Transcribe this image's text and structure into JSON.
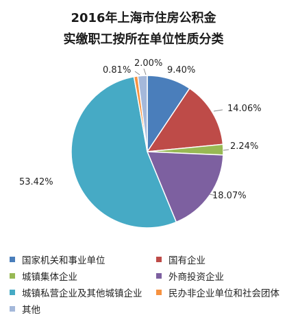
{
  "chart_data": {
    "type": "pie",
    "title": "2016年上海市住房公积金",
    "subtitle": "实缴职工按所在单位性质分类",
    "slices": [
      {
        "label": "国家机关和事业单位",
        "value": 9.4,
        "display": "9.40%",
        "color": "#4a7ebb"
      },
      {
        "label": "国有企业",
        "value": 14.06,
        "display": "14.06%",
        "color": "#be4b48"
      },
      {
        "label": "城镇集体企业",
        "value": 2.24,
        "display": "2.24%",
        "color": "#98b954"
      },
      {
        "label": "外商投资企业",
        "value": 18.07,
        "display": "18.07%",
        "color": "#7d60a0"
      },
      {
        "label": "城镇私营企业及其他城镇企业",
        "value": 53.42,
        "display": "53.42%",
        "color": "#46aac5"
      },
      {
        "label": "民办非企业单位和社会团体",
        "value": 0.81,
        "display": "0.81%",
        "color": "#f69240"
      },
      {
        "label": "其他",
        "value": 2.0,
        "display": "2.00%",
        "color": "#a4b8da"
      }
    ],
    "legend_position": "bottom"
  }
}
